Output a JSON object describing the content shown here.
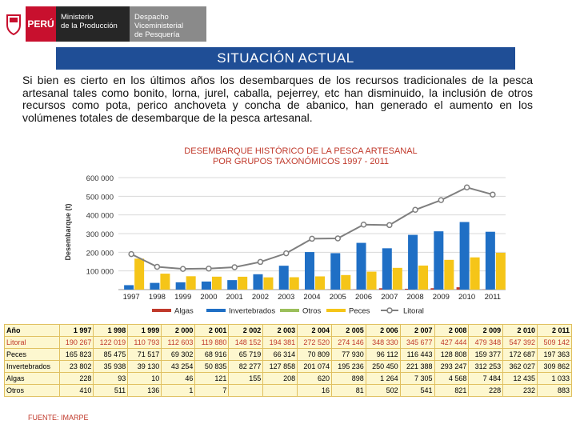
{
  "logo": {
    "country": "PERÚ",
    "ministry_l1": "Ministerio",
    "ministry_l2": "de la Producción",
    "vice_l1": "Despacho Viceministerial",
    "vice_l2": "de Pesquería"
  },
  "banner": "SITUACIÓN ACTUAL",
  "paragraph": "Si bien es cierto en los últimos años los desembarques de los recursos tradicionales de la pesca artesanal tales como bonito, lorna, jurel, caballa, pejerrey, etc han disminuido, la inclusión de otros recursos como pota, perico anchoveta y concha de abanico, han generado el aumento en los volúmenes totales de desembarque de la pesca artesanal.",
  "chart_data": {
    "type": "bar",
    "title_l1": "DESEMBARQUE HISTÓRICO DE LA PESCA ARTESANAL",
    "title_l2": "POR GRUPOS TAXONÓMICOS 1997 - 2011",
    "ylabel": "Desembarque (t)",
    "ylim": [
      0,
      600000
    ],
    "yticks": [
      "100 000",
      "200 000",
      "300 000",
      "400 000",
      "500 000",
      "600 000"
    ],
    "categories": [
      "1997",
      "1998",
      "1999",
      "2000",
      "2001",
      "2002",
      "2003",
      "2004",
      "2005",
      "2006",
      "2007",
      "2008",
      "2009",
      "2010",
      "2011"
    ],
    "series": [
      {
        "name": "Algas",
        "color": "#c0392b",
        "values": [
          228,
          93,
          10,
          46,
          121,
          155,
          208,
          620,
          898,
          1264,
          7305,
          4568,
          7484,
          12435,
          1033
        ]
      },
      {
        "name": "Invertebrados",
        "color": "#1f6fc5",
        "values": [
          23802,
          35938,
          39130,
          43254,
          50835,
          82277,
          127858,
          201074,
          195236,
          250450,
          221388,
          293247,
          312253,
          362027,
          309862
        ]
      },
      {
        "name": "Otros",
        "color": "#9bbf5b",
        "values": [
          410,
          511,
          136,
          1,
          7,
          0,
          0,
          16,
          81,
          502,
          541,
          821,
          228,
          232,
          883
        ]
      },
      {
        "name": "Peces",
        "color": "#f5c518",
        "values": [
          165823,
          85475,
          71517,
          69302,
          68916,
          65719,
          66314,
          70809,
          77930,
          96112,
          116443,
          128808,
          159377,
          172687,
          197363
        ]
      },
      {
        "name": "Litoral",
        "type": "line",
        "color": "#7f7f7f",
        "values": [
          190267,
          122019,
          110793,
          112603,
          119880,
          148152,
          194381,
          272520,
          274146,
          348330,
          345677,
          427444,
          479348,
          547392,
          509142
        ]
      }
    ]
  },
  "table": {
    "header": [
      "Año",
      "1 997",
      "1 998",
      "1 999",
      "2 000",
      "2 001",
      "2 002",
      "2 003",
      "2 004",
      "2 005",
      "2 006",
      "2 007",
      "2 008",
      "2 009",
      "2 010",
      "2 011"
    ],
    "rows": [
      [
        "Litoral",
        "190 267",
        "122 019",
        "110 793",
        "112 603",
        "119 880",
        "148 152",
        "194 381",
        "272 520",
        "274 146",
        "348 330",
        "345 677",
        "427 444",
        "479 348",
        "547 392",
        "509 142"
      ],
      [
        "Peces",
        "165 823",
        "85 475",
        "71 517",
        "69 302",
        "68 916",
        "65 719",
        "66 314",
        "70 809",
        "77 930",
        "96 112",
        "116 443",
        "128 808",
        "159 377",
        "172 687",
        "197 363"
      ],
      [
        "Invertebrados",
        "23 802",
        "35 938",
        "39 130",
        "43 254",
        "50 835",
        "82 277",
        "127 858",
        "201 074",
        "195 236",
        "250 450",
        "221 388",
        "293 247",
        "312 253",
        "362 027",
        "309 862"
      ],
      [
        "Algas",
        "228",
        "93",
        "10",
        "46",
        "121",
        "155",
        "208",
        "620",
        "898",
        "1 264",
        "7 305",
        "4 568",
        "7 484",
        "12 435",
        "1 033"
      ],
      [
        "Otros",
        "410",
        "511",
        "136",
        "1",
        "7",
        "",
        "",
        "16",
        "81",
        "502",
        "541",
        "821",
        "228",
        "232",
        "883"
      ]
    ]
  },
  "source": "FUENTE: IMARPE"
}
